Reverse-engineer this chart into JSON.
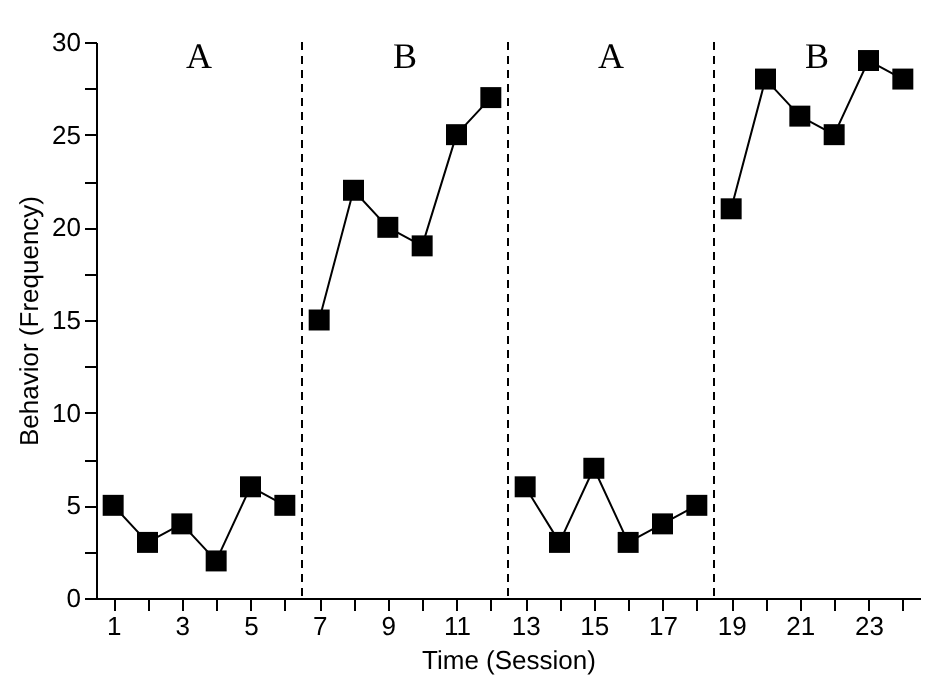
{
  "chart_data": {
    "type": "line",
    "xlabel": "Time (Session)",
    "ylabel": "Behavior (Frequency)",
    "series": [
      {
        "color": "#000000",
        "x": [
          1,
          2,
          3,
          4,
          5,
          6
        ],
        "values": [
          5,
          3,
          4,
          2,
          6,
          5
        ]
      },
      {
        "color": "#000000",
        "x": [
          7,
          8,
          9,
          10,
          11,
          12
        ],
        "values": [
          15,
          22,
          20,
          19,
          25,
          27
        ]
      },
      {
        "color": "#000000",
        "x": [
          13,
          14,
          15,
          16,
          17,
          18
        ],
        "values": [
          6,
          3,
          7,
          3,
          4,
          5
        ]
      },
      {
        "color": "#000000",
        "x": [
          19,
          20,
          21,
          22,
          23,
          24
        ],
        "values": [
          21,
          28,
          26,
          25,
          29,
          28
        ]
      }
    ],
    "xlim": [
      0.5,
      24.5
    ],
    "xticks": [
      1,
      {
        "value": 2,
        "label": null
      },
      3,
      {
        "value": 4,
        "label": null
      },
      5,
      {
        "value": 6,
        "label": null
      },
      7,
      {
        "value": 8,
        "label": null
      },
      9,
      {
        "value": 10,
        "label": null
      },
      11,
      {
        "value": 12,
        "label": null
      },
      13,
      {
        "value": 14,
        "label": null
      },
      15,
      {
        "value": 16,
        "label": null
      },
      17,
      {
        "value": 18,
        "label": null
      },
      19,
      {
        "value": 20,
        "label": null
      },
      21,
      {
        "value": 22,
        "label": null
      },
      23,
      {
        "value": 24,
        "label": null
      }
    ],
    "ylim": [
      0,
      30
    ],
    "yticks": [
      0,
      {
        "value": 2.5,
        "label": null
      },
      5,
      {
        "value": 7.5,
        "label": null
      },
      10,
      {
        "value": 12.5,
        "label": null
      },
      15,
      {
        "value": 17.5,
        "label": null
      },
      20,
      {
        "value": 22.5,
        "label": null
      },
      25,
      {
        "value": 27.5,
        "label": null
      },
      30
    ],
    "ref_lines": [
      {
        "axis": "x",
        "value": 6.5,
        "color": "#000000",
        "line_style": "dashed"
      },
      {
        "axis": "x",
        "value": 12.5,
        "color": "#000000",
        "line_style": "dashed"
      },
      {
        "axis": "x",
        "value": 18.5,
        "color": "#000000",
        "line_style": "dashed"
      }
    ],
    "annotations": [
      "A",
      "B",
      "A",
      "B"
    ],
    "marker": "square",
    "line_style": "solid",
    "grid": false
  }
}
